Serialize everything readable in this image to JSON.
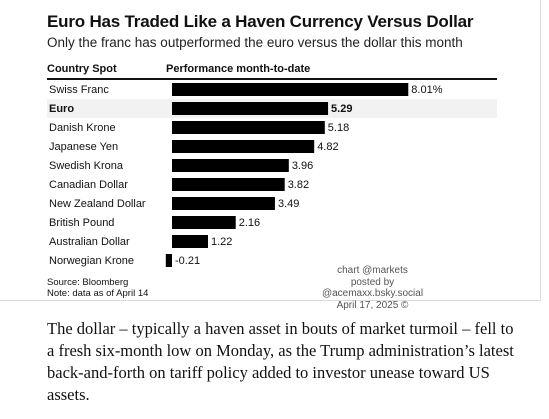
{
  "chart_data": {
    "type": "bar",
    "orientation": "horizontal",
    "title": "Euro Has Traded Like a Haven Currency Versus Dollar",
    "subtitle": "Only the franc has outperformed the euro versus the dollar this month",
    "column_headers": [
      "Country Spot",
      "Performance month-to-date"
    ],
    "categories": [
      "Swiss Franc",
      "Euro",
      "Danish Krone",
      "Japanese Yen",
      "Swedish Krona",
      "Canadian Dollar",
      "New Zealand Dollar",
      "British Pound",
      "Australian Dollar",
      "Norwegian Krone"
    ],
    "values": [
      8.01,
      5.29,
      5.18,
      4.82,
      3.96,
      3.82,
      3.49,
      2.16,
      1.22,
      -0.21
    ],
    "value_labels": [
      "8.01%",
      "5.29",
      "5.18",
      "4.82",
      "3.96",
      "3.82",
      "3.49",
      "2.16",
      "1.22",
      "-0.21"
    ],
    "highlighted_category": "Euro",
    "bar_color": "#000000",
    "highlight_row_color": "#f2f2f2"
  },
  "footer": {
    "source": "Source: Bloomberg",
    "note": "Note: data as of April 14"
  },
  "credit": {
    "line1": "chart @markets",
    "line2": "posted by @acemaxx.bsky.social",
    "line3": "April 17, 2025 ©"
  },
  "article": {
    "paragraph": "The dollar – typically a haven asset in bouts of market turmoil – fell to a fresh six-month low on Monday, as the Trump administration’s latest back-and-forth on tariff policy added to investor unease toward US assets."
  }
}
